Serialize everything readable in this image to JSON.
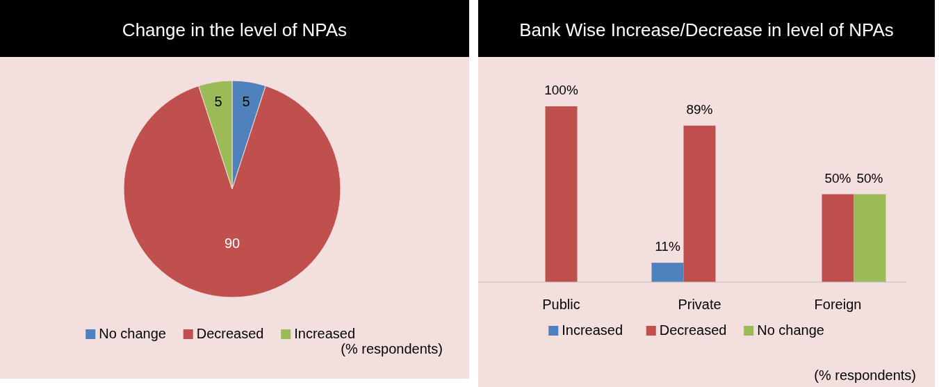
{
  "chart_data": [
    {
      "type": "pie",
      "title": "Change in the level of NPAs",
      "categories": [
        "No change",
        "Decreased",
        "Increased"
      ],
      "values": [
        5,
        90,
        5
      ],
      "colors": [
        "#4f81bd",
        "#c0504d",
        "#9bbb59"
      ],
      "data_labels": true,
      "legend": "bottom",
      "annotations": [
        "(% respondents)"
      ]
    },
    {
      "type": "bar",
      "title": "Bank Wise Increase/Decrease in level of NPAs",
      "categories": [
        "Public",
        "Private",
        "Foreign"
      ],
      "series": [
        {
          "name": "Increased",
          "color": "#4f81bd",
          "values": [
            null,
            11,
            null
          ],
          "value_labels": [
            null,
            "11%",
            null
          ]
        },
        {
          "name": "Decreased",
          "color": "#c0504d",
          "values": [
            100,
            89,
            50
          ],
          "value_labels": [
            "100%",
            "89%",
            "50%"
          ]
        },
        {
          "name": "No change",
          "color": "#9bbb59",
          "values": [
            null,
            null,
            50
          ],
          "value_labels": [
            null,
            null,
            "50%"
          ]
        }
      ],
      "legend": "bottom",
      "annotations": [
        "(% respondents)"
      ]
    }
  ]
}
